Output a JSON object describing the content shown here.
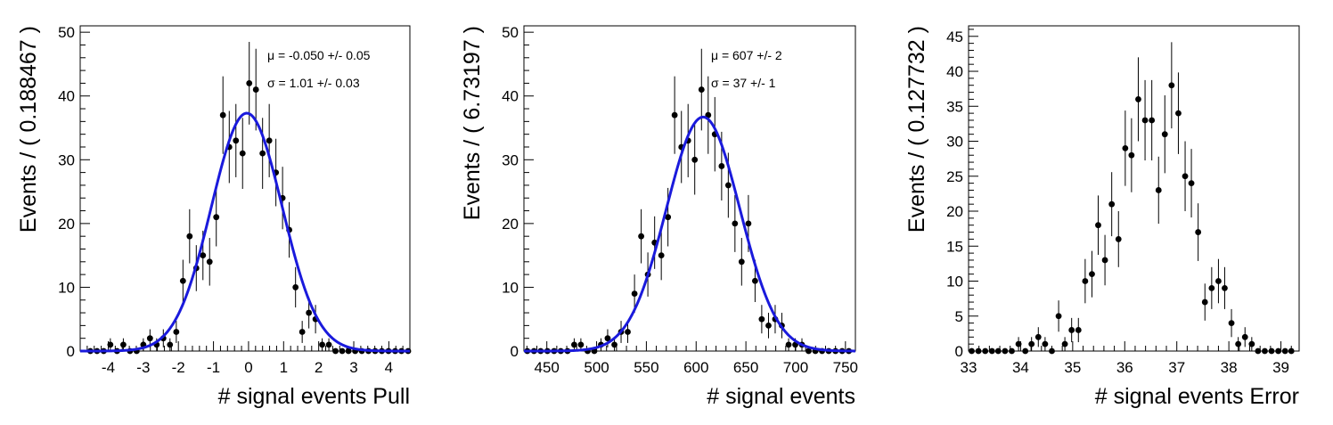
{
  "chart_data": [
    {
      "type": "scatter",
      "title": "",
      "xlabel": "# signal events Pull",
      "ylabel": "Events / ( 0.188467 )",
      "xlim": [
        -4.8,
        4.6
      ],
      "ylim": [
        0,
        51
      ],
      "xticks": [
        -4,
        -3,
        -2,
        -1,
        0,
        1,
        2,
        3,
        4
      ],
      "yticks": [
        0,
        10,
        20,
        30,
        40,
        50
      ],
      "grid": false,
      "annotations": [
        "μ = -0.050 +/- 0.05",
        "σ =  1.01 +/- 0.03"
      ],
      "series": [
        {
          "style": "points-with-errorbars",
          "x": [
            -4.51,
            -4.32,
            -4.13,
            -3.94,
            -3.75,
            -3.57,
            -3.38,
            -3.19,
            -3.0,
            -2.81,
            -2.62,
            -2.43,
            -2.24,
            -2.06,
            -1.87,
            -1.68,
            -1.49,
            -1.3,
            -1.11,
            -0.92,
            -0.73,
            -0.55,
            -0.36,
            -0.17,
            0.02,
            0.21,
            0.4,
            0.59,
            0.78,
            0.97,
            1.16,
            1.34,
            1.53,
            1.72,
            1.91,
            2.1,
            2.29,
            2.48,
            2.67,
            2.85,
            3.04,
            3.23,
            3.42,
            3.61,
            3.8,
            3.99,
            4.18,
            4.36,
            4.55
          ],
          "y": [
            0,
            0,
            0,
            1,
            0,
            1,
            0,
            0,
            1,
            2,
            1,
            2,
            1,
            3,
            11,
            18,
            13,
            15,
            14,
            21,
            37,
            32,
            33,
            31,
            42,
            41,
            31,
            33,
            28,
            24,
            19,
            10,
            3,
            6,
            5,
            1,
            1,
            0,
            0,
            0,
            0,
            0,
            0,
            0,
            0,
            0,
            0,
            0,
            0
          ]
        },
        {
          "style": "gaussian-fit",
          "mean": -0.05,
          "sigma": 1.01,
          "amplitude": 37.3
        }
      ]
    },
    {
      "type": "scatter",
      "title": "",
      "xlabel": "# signal events",
      "ylabel": "Events / ( 6.73197 )",
      "xlim": [
        427,
        760
      ],
      "ylim": [
        0,
        51
      ],
      "xticks": [
        450,
        500,
        550,
        600,
        650,
        700,
        750
      ],
      "yticks": [
        0,
        10,
        20,
        30,
        40,
        50
      ],
      "grid": false,
      "annotations": [
        "μ =  607 +/- 2",
        "σ =  37 +/- 1"
      ],
      "series": [
        {
          "style": "points-with-errorbars",
          "x": [
            430.4,
            437.1,
            443.8,
            450.6,
            457.3,
            464.0,
            470.8,
            477.5,
            484.2,
            491.0,
            497.7,
            504.4,
            511.1,
            517.9,
            524.6,
            531.3,
            538.1,
            544.8,
            551.5,
            558.3,
            565.0,
            571.7,
            578.4,
            585.2,
            591.9,
            598.6,
            605.4,
            612.1,
            618.8,
            625.6,
            632.3,
            639.0,
            645.7,
            652.5,
            659.2,
            665.9,
            672.7,
            679.4,
            686.1,
            692.9,
            699.6,
            706.3,
            713.0,
            719.8,
            726.5,
            733.2,
            740.0,
            746.7,
            753.4
          ],
          "y": [
            0,
            0,
            0,
            0,
            0,
            0,
            0,
            1,
            1,
            0,
            0,
            1,
            2,
            1,
            3,
            3,
            9,
            18,
            12,
            17,
            15,
            21,
            37,
            32,
            33,
            30,
            41,
            37,
            34,
            29,
            26,
            20,
            14,
            20,
            11,
            5,
            4,
            5,
            4,
            1,
            1,
            1,
            0,
            0,
            0,
            0,
            0,
            0,
            0
          ]
        },
        {
          "style": "gaussian-fit",
          "mean": 607,
          "sigma": 37,
          "amplitude": 36.7
        }
      ]
    },
    {
      "type": "scatter",
      "title": "",
      "xlabel": "# signal events Error",
      "ylabel": "Events / ( 0.127732 )",
      "xlim": [
        33,
        39.35
      ],
      "ylim": [
        0,
        46.5
      ],
      "xticks": [
        33,
        34,
        35,
        36,
        37,
        38,
        39
      ],
      "yticks": [
        0,
        5,
        10,
        15,
        20,
        25,
        30,
        35,
        40,
        45
      ],
      "grid": false,
      "annotations": [],
      "series": [
        {
          "style": "points-with-errorbars",
          "x": [
            33.06,
            33.19,
            33.32,
            33.45,
            33.57,
            33.7,
            33.83,
            33.96,
            34.09,
            34.21,
            34.34,
            34.47,
            34.6,
            34.73,
            34.85,
            34.98,
            35.11,
            35.24,
            35.37,
            35.49,
            35.62,
            35.75,
            35.88,
            36.01,
            36.13,
            36.26,
            36.39,
            36.52,
            36.65,
            36.77,
            36.9,
            37.03,
            37.16,
            37.28,
            37.41,
            37.54,
            37.67,
            37.8,
            37.92,
            38.05,
            38.18,
            38.31,
            38.44,
            38.56,
            38.69,
            38.82,
            38.95,
            39.08,
            39.2
          ],
          "y": [
            0,
            0,
            0,
            0,
            0,
            0,
            0,
            1,
            0,
            1,
            2,
            1,
            0,
            5,
            1,
            3,
            3,
            10,
            11,
            18,
            13,
            21,
            16,
            29,
            28,
            36,
            33,
            33,
            23,
            31,
            38,
            34,
            25,
            24,
            17,
            7,
            9,
            10,
            9,
            4,
            1,
            2,
            1,
            0,
            0,
            0,
            0,
            0,
            0
          ]
        }
      ]
    }
  ]
}
